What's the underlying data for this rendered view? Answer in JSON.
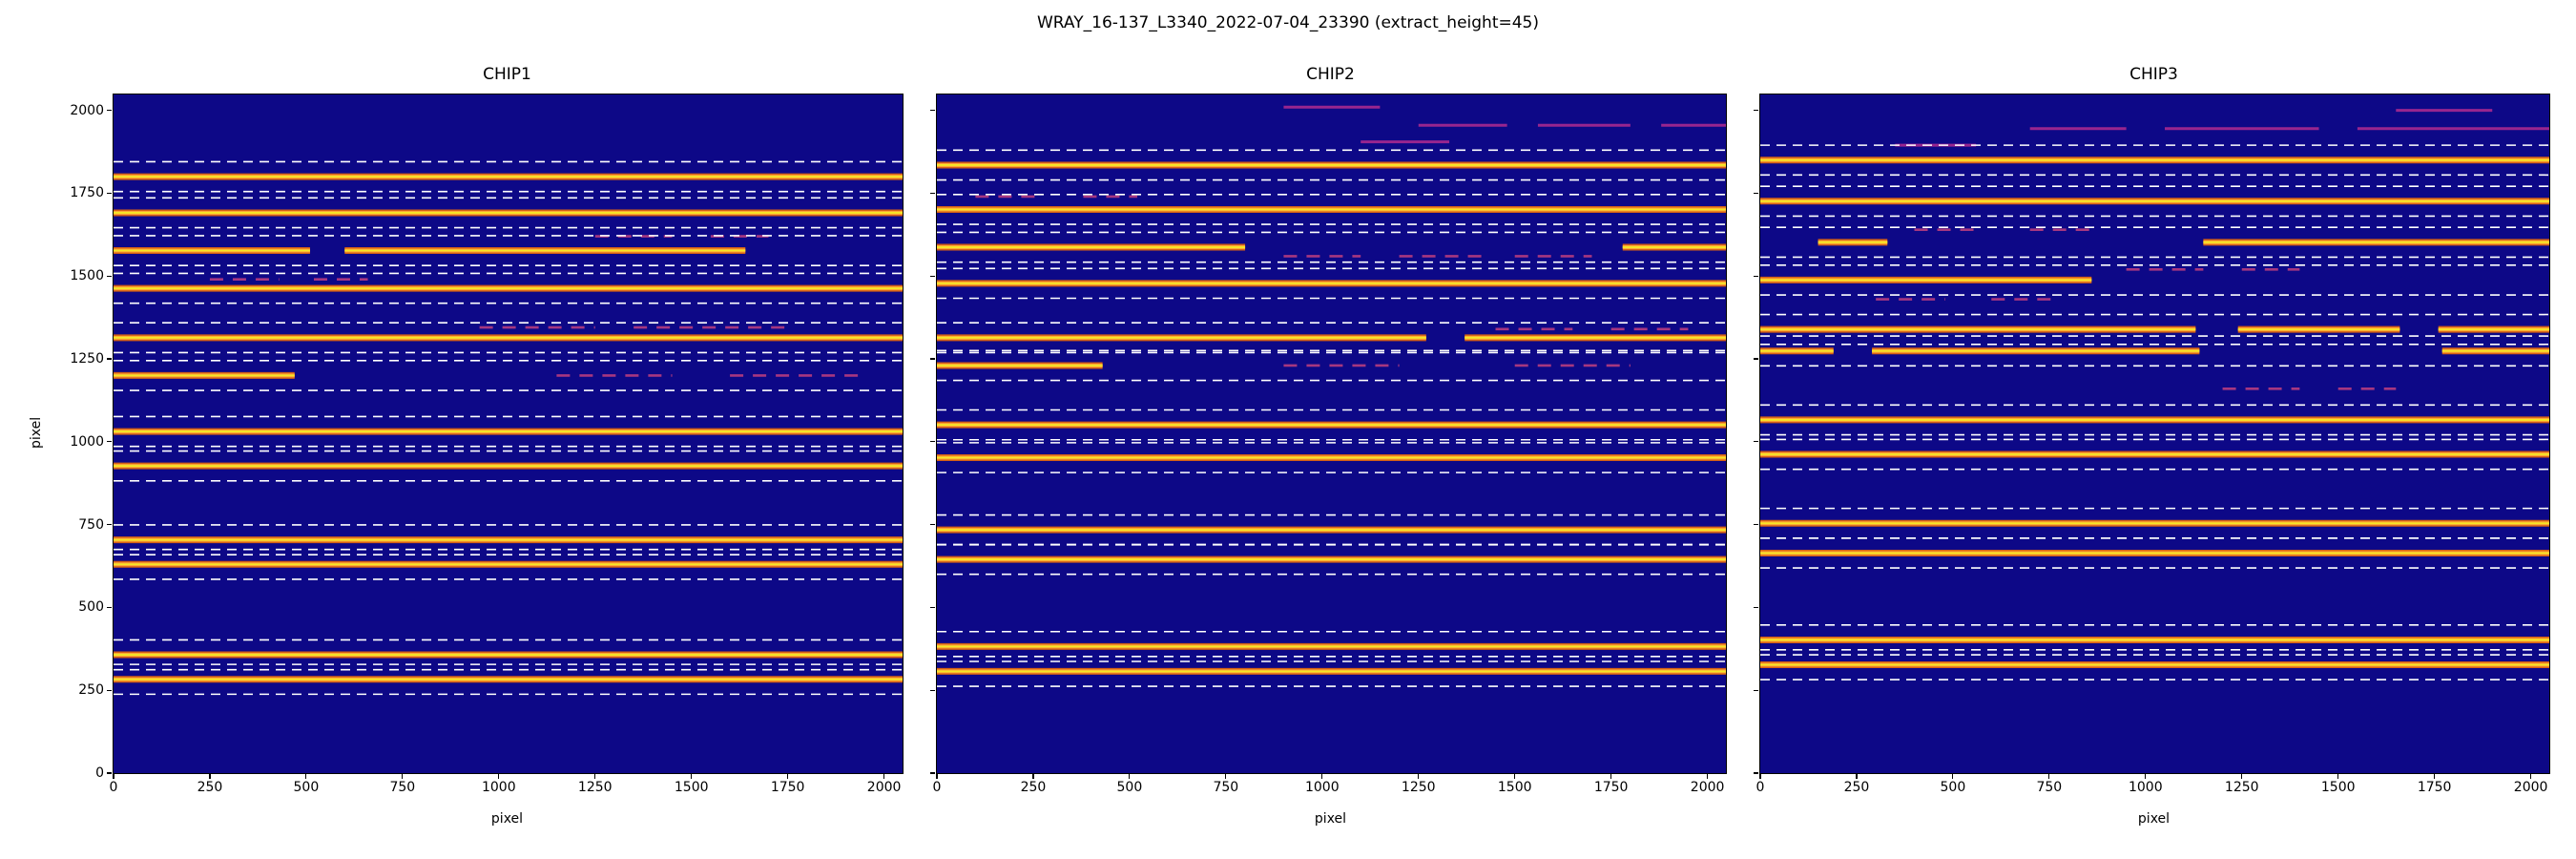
{
  "figure": {
    "suptitle": "WRAY_16-137_L3340_2022-07-04_23390  (extract_height=45)",
    "xlabel": "pixel",
    "ylabel": "pixel"
  },
  "chart_data": {
    "type": "heatmap",
    "colormap": "plasma",
    "xlim": [
      0,
      2048
    ],
    "ylim": [
      0,
      2048
    ],
    "xticks": [
      0,
      250,
      500,
      750,
      1000,
      1250,
      1500,
      1750,
      2000
    ],
    "yticks": [
      0,
      250,
      500,
      750,
      1000,
      1250,
      1500,
      1750,
      2000
    ],
    "extract_height": 45,
    "colors": {
      "background": "#0d0887",
      "order_outer": "#e2650e",
      "order_mid": "#fca636",
      "order_core": "#f6e726",
      "boundary": "#ffffff",
      "faint": "#c2407f",
      "streak": "#b12a90"
    },
    "panels": [
      {
        "title": "CHIP1",
        "show_ytick_labels": true,
        "orders": [
          {
            "y": 1800,
            "seg": [
              [
                0,
                2048
              ]
            ]
          },
          {
            "y": 1691,
            "seg": [
              [
                0,
                2048
              ]
            ]
          },
          {
            "y": 1577,
            "seg": [
              [
                0,
                510
              ],
              [
                600,
                1640
              ]
            ]
          },
          {
            "y": 1463,
            "seg": [
              [
                0,
                2048
              ]
            ]
          },
          {
            "y": 1314,
            "seg": [
              [
                0,
                2048
              ]
            ]
          },
          {
            "y": 1200,
            "seg": [
              [
                0,
                470
              ]
            ]
          },
          {
            "y": 1031,
            "seg": [
              [
                0,
                2048
              ]
            ]
          },
          {
            "y": 927,
            "seg": [
              [
                0,
                2048
              ]
            ]
          },
          {
            "y": 704,
            "seg": [
              [
                0,
                2048
              ]
            ]
          },
          {
            "y": 630,
            "seg": [
              [
                0,
                2048
              ]
            ]
          },
          {
            "y": 357,
            "seg": [
              [
                0,
                2048
              ]
            ]
          },
          {
            "y": 283,
            "seg": [
              [
                0,
                2048
              ]
            ]
          }
        ],
        "faint_traces": [
          {
            "y": 1345,
            "seg": [
              [
                950,
                1250
              ],
              [
                1350,
                1750
              ]
            ]
          },
          {
            "y": 1200,
            "seg": [
              [
                1150,
                1450
              ],
              [
                1600,
                1950
              ]
            ]
          },
          {
            "y": 1490,
            "seg": [
              [
                250,
                430
              ],
              [
                520,
                660
              ]
            ]
          },
          {
            "y": 1620,
            "seg": [
              [
                1250,
                1450
              ],
              [
                1550,
                1700
              ]
            ]
          }
        ],
        "streaks": []
      },
      {
        "title": "CHIP2",
        "show_ytick_labels": false,
        "orders": [
          {
            "y": 1835,
            "seg": [
              [
                0,
                2048
              ]
            ]
          },
          {
            "y": 1701,
            "seg": [
              [
                0,
                2048
              ]
            ]
          },
          {
            "y": 1587,
            "seg": [
              [
                0,
                800
              ],
              [
                1780,
                2048
              ]
            ]
          },
          {
            "y": 1478,
            "seg": [
              [
                0,
                2048
              ]
            ]
          },
          {
            "y": 1314,
            "seg": [
              [
                0,
                1270
              ],
              [
                1370,
                2048
              ]
            ]
          },
          {
            "y": 1230,
            "seg": [
              [
                0,
                430
              ]
            ]
          },
          {
            "y": 1051,
            "seg": [
              [
                0,
                2048
              ]
            ]
          },
          {
            "y": 952,
            "seg": [
              [
                0,
                2048
              ]
            ]
          },
          {
            "y": 734,
            "seg": [
              [
                0,
                2048
              ]
            ]
          },
          {
            "y": 645,
            "seg": [
              [
                0,
                2048
              ]
            ]
          },
          {
            "y": 382,
            "seg": [
              [
                0,
                2048
              ]
            ]
          },
          {
            "y": 307,
            "seg": [
              [
                0,
                2048
              ]
            ]
          }
        ],
        "faint_traces": [
          {
            "y": 1560,
            "seg": [
              [
                900,
                1100
              ],
              [
                1200,
                1420
              ],
              [
                1500,
                1700
              ]
            ]
          },
          {
            "y": 1230,
            "seg": [
              [
                900,
                1200
              ],
              [
                1500,
                1800
              ]
            ]
          },
          {
            "y": 1340,
            "seg": [
              [
                1450,
                1650
              ],
              [
                1750,
                1950
              ]
            ]
          },
          {
            "y": 1740,
            "seg": [
              [
                100,
                260
              ],
              [
                380,
                520
              ]
            ]
          }
        ],
        "streaks": [
          {
            "y": 1955,
            "seg": [
              [
                1250,
                1480
              ],
              [
                1560,
                1800
              ],
              [
                1880,
                2048
              ]
            ]
          },
          {
            "y": 1905,
            "seg": [
              [
                1100,
                1330
              ]
            ]
          },
          {
            "y": 2010,
            "seg": [
              [
                900,
                1150
              ]
            ]
          }
        ]
      },
      {
        "title": "CHIP3",
        "show_ytick_labels": false,
        "orders": [
          {
            "y": 1850,
            "seg": [
              [
                0,
                2048
              ]
            ]
          },
          {
            "y": 1726,
            "seg": [
              [
                0,
                2048
              ]
            ]
          },
          {
            "y": 1602,
            "seg": [
              [
                150,
                330
              ],
              [
                1150,
                2048
              ]
            ]
          },
          {
            "y": 1488,
            "seg": [
              [
                0,
                860
              ]
            ]
          },
          {
            "y": 1339,
            "seg": [
              [
                0,
                1130
              ],
              [
                1240,
                1660
              ],
              [
                1760,
                2048
              ]
            ]
          },
          {
            "y": 1274,
            "seg": [
              [
                0,
                190
              ],
              [
                290,
                1140
              ],
              [
                1770,
                2048
              ]
            ]
          },
          {
            "y": 1066,
            "seg": [
              [
                0,
                2048
              ]
            ]
          },
          {
            "y": 962,
            "seg": [
              [
                0,
                2048
              ]
            ]
          },
          {
            "y": 754,
            "seg": [
              [
                0,
                2048
              ]
            ]
          },
          {
            "y": 664,
            "seg": [
              [
                0,
                2048
              ]
            ]
          },
          {
            "y": 402,
            "seg": [
              [
                0,
                2048
              ]
            ]
          },
          {
            "y": 327,
            "seg": [
              [
                0,
                2048
              ]
            ]
          }
        ],
        "faint_traces": [
          {
            "y": 1520,
            "seg": [
              [
                950,
                1150
              ],
              [
                1250,
                1400
              ]
            ]
          },
          {
            "y": 1430,
            "seg": [
              [
                300,
                480
              ],
              [
                600,
                760
              ]
            ]
          },
          {
            "y": 1160,
            "seg": [
              [
                1200,
                1400
              ],
              [
                1500,
                1650
              ]
            ]
          },
          {
            "y": 1640,
            "seg": [
              [
                400,
                560
              ],
              [
                700,
                860
              ]
            ]
          }
        ],
        "streaks": [
          {
            "y": 1945,
            "seg": [
              [
                700,
                950
              ],
              [
                1050,
                1450
              ],
              [
                1550,
                2048
              ]
            ]
          },
          {
            "y": 1895,
            "seg": [
              [
                350,
                560
              ]
            ]
          },
          {
            "y": 2000,
            "seg": [
              [
                1650,
                1900
              ]
            ]
          }
        ]
      }
    ]
  }
}
